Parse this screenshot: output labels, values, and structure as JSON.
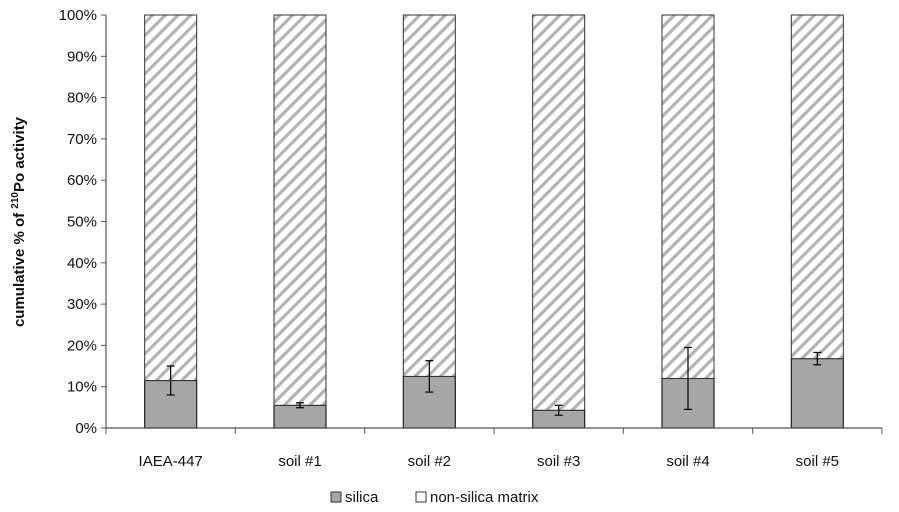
{
  "chart_data": {
    "type": "bar",
    "stacked": true,
    "categories": [
      "IAEA-447",
      "soil #1",
      "soil #2",
      "soil #3",
      "soil #4",
      "soil #5"
    ],
    "series": [
      {
        "name": "silica",
        "values": [
          11.5,
          5.5,
          12.5,
          4.3,
          12.0,
          16.8
        ],
        "error": [
          3.5,
          0.6,
          3.8,
          1.2,
          7.5,
          1.5
        ],
        "color": "#a6a6a6",
        "pattern": "solid"
      },
      {
        "name": "non-silica matrix",
        "values": [
          88.5,
          94.5,
          87.5,
          95.7,
          88.0,
          83.2
        ],
        "color": "#ffffff",
        "pattern": "diagonal-hatch"
      }
    ],
    "ylabel": {
      "prefix": "cumulative % of ",
      "superscript": "210",
      "suffix": "Po activity"
    },
    "ylim": [
      0,
      100
    ],
    "yticks": [
      "0%",
      "10%",
      "20%",
      "30%",
      "40%",
      "50%",
      "60%",
      "70%",
      "80%",
      "90%",
      "100%"
    ],
    "grid": false,
    "legend_position": "bottom-center"
  }
}
